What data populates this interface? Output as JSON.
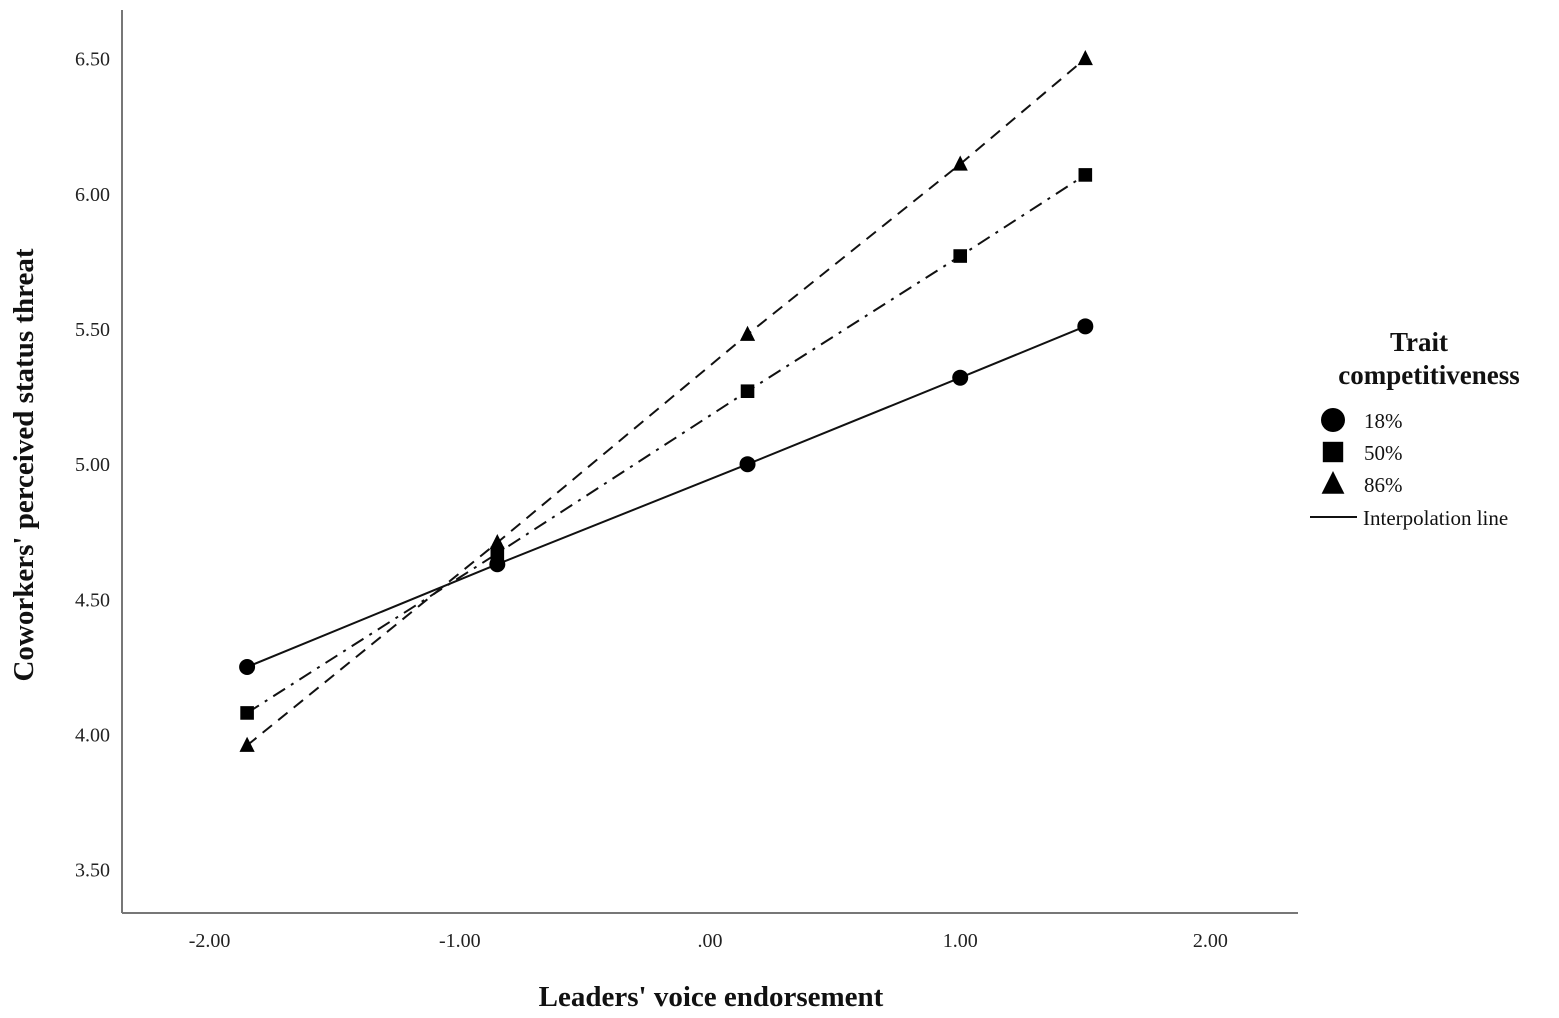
{
  "chart_data": {
    "type": "line",
    "xlabel": "Leaders' voice endorsement",
    "ylabel": "Coworkers' perceived status threat",
    "xlim": [
      -2.35,
      2.35
    ],
    "ylim": [
      3.34,
      6.68
    ],
    "xticks": [
      -2,
      -1,
      0,
      1,
      2
    ],
    "xtick_labels": [
      "-2.00",
      "-1.00",
      ".00",
      "1.00",
      "2.00"
    ],
    "yticks": [
      3.5,
      4.0,
      4.5,
      5.0,
      5.5,
      6.0,
      6.5
    ],
    "ytick_labels": [
      "3.50",
      "4.00",
      "4.50",
      "5.00",
      "5.50",
      "6.00",
      "6.50"
    ],
    "grid": false,
    "legend": {
      "title_lines": [
        "Trait",
        "competitiveness"
      ],
      "placement": "right",
      "interpolation_label": "Interpolation line"
    },
    "series": [
      {
        "name": "18%",
        "marker": "circle",
        "dash": "solid",
        "x": [
          -1.85,
          -0.85,
          0.15,
          1.0,
          1.5
        ],
        "y": [
          4.25,
          4.63,
          5.0,
          5.32,
          5.51
        ]
      },
      {
        "name": "50%",
        "marker": "square",
        "dash": "dashdot",
        "x": [
          -1.85,
          -0.85,
          0.15,
          1.0,
          1.5
        ],
        "y": [
          4.08,
          4.67,
          5.27,
          5.77,
          6.07
        ]
      },
      {
        "name": "86%",
        "marker": "triangle",
        "dash": "dashed",
        "x": [
          -1.85,
          -0.85,
          0.15,
          1.0,
          1.5
        ],
        "y": [
          3.96,
          4.71,
          5.48,
          6.11,
          6.5
        ]
      }
    ]
  }
}
